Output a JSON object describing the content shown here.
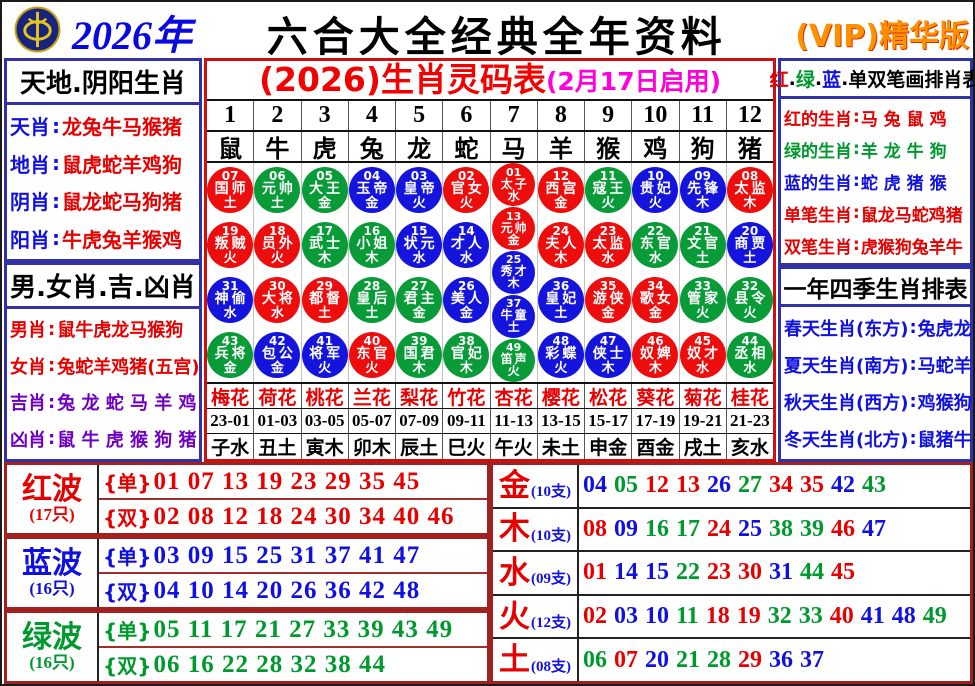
{
  "palette": {
    "red": "#e60000",
    "green": "#00992e",
    "blue": "#1010e0",
    "purple": "#6f00c2",
    "magenta": "#ff00dd",
    "orange": "#ff9100",
    "navy_border": "#3232a8",
    "maroon_border": "#a32020"
  },
  "header": {
    "year": "2026年",
    "title": "六合大全经典全年资料",
    "vip": "(VIP)精华版",
    "logo": "coin-emblem-icon"
  },
  "left_top": {
    "title": "天地.阴阳生肖",
    "rows": [
      {
        "label": "天肖",
        "value": "龙兔牛马猴猪",
        "label_color": "b",
        "value_color": "r"
      },
      {
        "label": "地肖",
        "value": "鼠虎蛇羊鸡狗",
        "label_color": "b",
        "value_color": "r"
      },
      {
        "label": "阴肖",
        "value": "鼠龙蛇马狗猪",
        "label_color": "b",
        "value_color": "r"
      },
      {
        "label": "阳肖",
        "value": "牛虎兔羊猴鸡",
        "label_color": "b",
        "value_color": "r"
      }
    ]
  },
  "left_bottom": {
    "title": "男.女肖.吉.凶肖",
    "rows": [
      {
        "label": "男肖",
        "value": "鼠牛虎龙马猴狗",
        "label_color": "r",
        "value_color": "r"
      },
      {
        "label": "女肖",
        "value": "兔蛇羊鸡猪(五宫)",
        "label_color": "r",
        "value_color": "r"
      },
      {
        "label": "吉肖",
        "value": "兔 龙 蛇 马 羊 鸡",
        "label_color": "p",
        "value_color": "p"
      },
      {
        "label": "凶肖",
        "value": "鼠 牛 虎 猴 狗 猪",
        "label_color": "p",
        "value_color": "p"
      }
    ]
  },
  "center": {
    "title": "(2026)生肖灵码表",
    "subtitle": "(2月17日启用)",
    "columns": [
      {
        "num": "1",
        "animal": "鼠",
        "flower": "梅花",
        "time": "23-01",
        "branch": "子水",
        "balls": [
          [
            "07",
            "国师",
            "土",
            "r"
          ],
          [
            "19",
            "叛贼",
            "火",
            "r"
          ],
          [
            "31",
            "神偷",
            "水",
            "b"
          ],
          [
            "43",
            "兵将",
            "金",
            "g"
          ]
        ]
      },
      {
        "num": "2",
        "animal": "牛",
        "flower": "荷花",
        "time": "01-03",
        "branch": "丑土",
        "balls": [
          [
            "06",
            "元帅",
            "土",
            "g"
          ],
          [
            "18",
            "员外",
            "火",
            "r"
          ],
          [
            "30",
            "大将",
            "水",
            "r"
          ],
          [
            "42",
            "包公",
            "金",
            "b"
          ]
        ]
      },
      {
        "num": "3",
        "animal": "虎",
        "flower": "桃花",
        "time": "03-05",
        "branch": "寅木",
        "balls": [
          [
            "05",
            "大王",
            "金",
            "g"
          ],
          [
            "17",
            "武士",
            "木",
            "g"
          ],
          [
            "29",
            "都督",
            "土",
            "r"
          ],
          [
            "41",
            "将军",
            "火",
            "b"
          ]
        ]
      },
      {
        "num": "4",
        "animal": "兔",
        "flower": "兰花",
        "time": "05-07",
        "branch": "卯木",
        "balls": [
          [
            "04",
            "玉帝",
            "金",
            "b"
          ],
          [
            "16",
            "小姐",
            "木",
            "g"
          ],
          [
            "28",
            "皇后",
            "土",
            "g"
          ],
          [
            "40",
            "东官",
            "火",
            "r"
          ]
        ]
      },
      {
        "num": "5",
        "animal": "龙",
        "flower": "梨花",
        "time": "07-09",
        "branch": "辰土",
        "balls": [
          [
            "03",
            "皇帝",
            "火",
            "b"
          ],
          [
            "15",
            "状元",
            "水",
            "b"
          ],
          [
            "27",
            "君主",
            "金",
            "g"
          ],
          [
            "39",
            "国君",
            "木",
            "g"
          ]
        ]
      },
      {
        "num": "6",
        "animal": "蛇",
        "flower": "竹花",
        "time": "09-11",
        "branch": "巳火",
        "balls": [
          [
            "02",
            "官女",
            "火",
            "r"
          ],
          [
            "14",
            "才人",
            "水",
            "b"
          ],
          [
            "26",
            "美人",
            "金",
            "b"
          ],
          [
            "38",
            "官妃",
            "木",
            "g"
          ]
        ]
      },
      {
        "num": "7",
        "animal": "马",
        "flower": "杏花",
        "time": "11-13",
        "branch": "午火",
        "balls": [
          [
            "01",
            "太子",
            "水",
            "r"
          ],
          [
            "13",
            "元帅",
            "金",
            "r"
          ],
          [
            "25",
            "秀才",
            "木",
            "b"
          ],
          [
            "37",
            "牛童",
            "土",
            "b"
          ],
          [
            "49",
            "笛声",
            "火",
            "g"
          ]
        ]
      },
      {
        "num": "8",
        "animal": "羊",
        "flower": "樱花",
        "time": "13-15",
        "branch": "未土",
        "balls": [
          [
            "12",
            "西宫",
            "金",
            "r"
          ],
          [
            "24",
            "夫人",
            "木",
            "r"
          ],
          [
            "36",
            "皇妃",
            "土",
            "b"
          ],
          [
            "48",
            "彩蝶",
            "火",
            "b"
          ]
        ]
      },
      {
        "num": "9",
        "animal": "猴",
        "flower": "松花",
        "time": "15-17",
        "branch": "申金",
        "balls": [
          [
            "11",
            "寇王",
            "火",
            "g"
          ],
          [
            "23",
            "太监",
            "水",
            "r"
          ],
          [
            "35",
            "游侠",
            "金",
            "r"
          ],
          [
            "47",
            "侠士",
            "木",
            "b"
          ]
        ]
      },
      {
        "num": "10",
        "animal": "鸡",
        "flower": "葵花",
        "time": "17-19",
        "branch": "酉金",
        "balls": [
          [
            "10",
            "贵妃",
            "火",
            "b"
          ],
          [
            "22",
            "东官",
            "水",
            "g"
          ],
          [
            "34",
            "歌女",
            "金",
            "r"
          ],
          [
            "46",
            "奴婢",
            "木",
            "r"
          ]
        ]
      },
      {
        "num": "11",
        "animal": "狗",
        "flower": "菊花",
        "time": "19-21",
        "branch": "戌土",
        "balls": [
          [
            "09",
            "先锋",
            "木",
            "b"
          ],
          [
            "21",
            "文官",
            "土",
            "g"
          ],
          [
            "33",
            "管家",
            "火",
            "g"
          ],
          [
            "45",
            "奴才",
            "水",
            "r"
          ]
        ]
      },
      {
        "num": "12",
        "animal": "猪",
        "flower": "桂花",
        "time": "21-23",
        "branch": "亥水",
        "balls": [
          [
            "08",
            "太监",
            "木",
            "r"
          ],
          [
            "20",
            "商贾",
            "土",
            "b"
          ],
          [
            "32",
            "县令",
            "火",
            "g"
          ],
          [
            "44",
            "丞相",
            "水",
            "g"
          ]
        ]
      }
    ]
  },
  "right_top": {
    "title_segments": [
      [
        "红",
        "r"
      ],
      [
        ".",
        "k"
      ],
      [
        "绿",
        "g"
      ],
      [
        ".",
        "k"
      ],
      [
        "蓝",
        "b"
      ],
      [
        ".",
        "k"
      ],
      [
        "单双笔画排肖表",
        "k"
      ]
    ],
    "rows": [
      {
        "label": "红的生肖",
        "value": "马 兔 鼠 鸡",
        "color": "r"
      },
      {
        "label": "绿的生肖",
        "value": "羊 龙 牛 狗",
        "color": "g"
      },
      {
        "label": "蓝的生肖",
        "value": "蛇 虎 猪 猴",
        "color": "b"
      },
      {
        "label": "单笔生肖",
        "value": "鼠龙马蛇鸡猪",
        "color": "r"
      },
      {
        "label": "双笔生肖",
        "value": "虎猴狗兔羊牛",
        "color": "r"
      }
    ]
  },
  "right_bottom": {
    "title": "一年四季生肖排表",
    "rows": [
      {
        "label": "春天生肖(东方)",
        "value": "兔虎龙"
      },
      {
        "label": "夏天生肖(南方)",
        "value": "马蛇羊"
      },
      {
        "label": "秋天生肖(西方)",
        "value": "鸡猴狗"
      },
      {
        "label": "冬天生肖(北方)",
        "value": "鼠猪牛"
      }
    ]
  },
  "waves": [
    {
      "name": "红波",
      "count": "(17只)",
      "color": "red",
      "odd_label": "{单}",
      "odd": "01 07 13 19 23 29 35 45",
      "even_label": "{双}",
      "even": "02 08 12 18 24 30 34 40 46"
    },
    {
      "name": "蓝波",
      "count": "(16只)",
      "color": "blue",
      "odd_label": "{单}",
      "odd": "03 09 15 25 31 37 41 47",
      "even_label": "{双}",
      "even": "04 10 14 20 26 36 42 48"
    },
    {
      "name": "绿波",
      "count": "(16只)",
      "color": "green",
      "odd_label": "{单}",
      "odd": "05 11 17 21 27 33 39 43 49",
      "even_label": "{双}",
      "even": "06 16 22 28 32 38 44"
    }
  ],
  "elements": [
    {
      "name": "金",
      "count": "(10支)",
      "numbers": [
        [
          "04",
          "b"
        ],
        [
          "05",
          "g"
        ],
        [
          "12",
          "r"
        ],
        [
          "13",
          "r"
        ],
        [
          "26",
          "b"
        ],
        [
          "27",
          "g"
        ],
        [
          "34",
          "r"
        ],
        [
          "35",
          "r"
        ],
        [
          "42",
          "b"
        ],
        [
          "43",
          "g"
        ]
      ]
    },
    {
      "name": "木",
      "count": "(10支)",
      "numbers": [
        [
          "08",
          "r"
        ],
        [
          "09",
          "b"
        ],
        [
          "16",
          "g"
        ],
        [
          "17",
          "g"
        ],
        [
          "24",
          "r"
        ],
        [
          "25",
          "b"
        ],
        [
          "38",
          "g"
        ],
        [
          "39",
          "g"
        ],
        [
          "46",
          "r"
        ],
        [
          "47",
          "b"
        ]
      ]
    },
    {
      "name": "水",
      "count": "(09支)",
      "numbers": [
        [
          "01",
          "r"
        ],
        [
          "14",
          "b"
        ],
        [
          "15",
          "b"
        ],
        [
          "22",
          "g"
        ],
        [
          "23",
          "r"
        ],
        [
          "30",
          "r"
        ],
        [
          "31",
          "b"
        ],
        [
          "44",
          "g"
        ],
        [
          "45",
          "r"
        ]
      ]
    },
    {
      "name": "火",
      "count": "(12支)",
      "numbers": [
        [
          "02",
          "r"
        ],
        [
          "03",
          "b"
        ],
        [
          "10",
          "b"
        ],
        [
          "11",
          "g"
        ],
        [
          "18",
          "r"
        ],
        [
          "19",
          "r"
        ],
        [
          "32",
          "g"
        ],
        [
          "33",
          "g"
        ],
        [
          "40",
          "r"
        ],
        [
          "41",
          "b"
        ],
        [
          "48",
          "b"
        ],
        [
          "49",
          "g"
        ]
      ]
    },
    {
      "name": "土",
      "count": "(08支)",
      "numbers": [
        [
          "06",
          "g"
        ],
        [
          "07",
          "r"
        ],
        [
          "20",
          "b"
        ],
        [
          "21",
          "g"
        ],
        [
          "28",
          "g"
        ],
        [
          "29",
          "r"
        ],
        [
          "36",
          "b"
        ],
        [
          "37",
          "b"
        ]
      ]
    }
  ]
}
